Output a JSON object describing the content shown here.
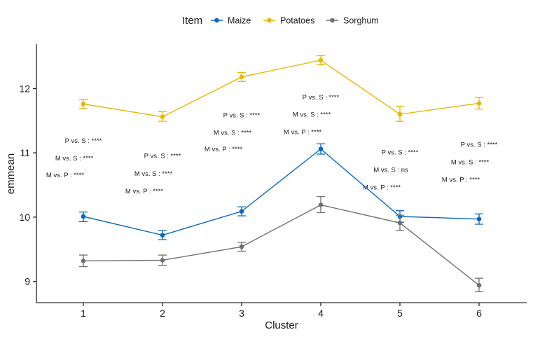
{
  "colors": {
    "Maize": "#0868C0",
    "Potatoes": "#E7B800",
    "Sorghum": "#707070",
    "axis": "#000000",
    "background": "#ffffff"
  },
  "chart_data": {
    "type": "line",
    "xlabel": "Cluster",
    "ylabel": "emmean",
    "categories": [
      "1",
      "2",
      "3",
      "4",
      "5",
      "6"
    ],
    "yticks": [
      9,
      10,
      11,
      12
    ],
    "ylim": [
      8.67,
      12.69
    ],
    "grid": false,
    "error_bars": true,
    "legend": {
      "title": "Item",
      "placement": "top",
      "entries": [
        "Maize",
        "Potatoes",
        "Sorghum"
      ]
    },
    "series": [
      {
        "name": "Maize",
        "values": [
          10.01,
          9.72,
          10.09,
          11.06,
          10.01,
          9.97
        ],
        "lower": [
          9.93,
          9.65,
          10.02,
          10.98,
          9.92,
          9.89
        ],
        "upper": [
          10.08,
          9.79,
          10.16,
          11.14,
          10.1,
          10.05
        ]
      },
      {
        "name": "Potatoes",
        "values": [
          11.76,
          11.56,
          12.18,
          12.44,
          11.6,
          11.77
        ],
        "lower": [
          11.69,
          11.49,
          12.11,
          12.37,
          11.49,
          11.68
        ],
        "upper": [
          11.83,
          11.64,
          12.25,
          12.51,
          11.72,
          11.86
        ]
      },
      {
        "name": "Sorghum",
        "values": [
          9.32,
          9.33,
          9.54,
          10.19,
          9.91,
          8.94
        ],
        "lower": [
          9.23,
          9.25,
          9.47,
          10.07,
          9.79,
          8.84
        ],
        "upper": [
          9.41,
          9.41,
          9.61,
          10.32,
          10.03,
          9.05
        ]
      }
    ],
    "annotations": [
      {
        "x": 1,
        "lines": [
          "P vs. S : ****",
          "M vs. S : ****",
          "M vs. P : ****"
        ],
        "y": [
          11.19,
          10.92,
          10.66
        ]
      },
      {
        "x": 2,
        "lines": [
          "P vs. S : ****",
          "M vs. S : ****",
          "M vs. P : ****"
        ],
        "y": [
          10.96,
          10.68,
          10.41
        ]
      },
      {
        "x": 3,
        "lines": [
          "P vs. S : ****",
          "M vs. S : ****",
          "M vs. P : ****"
        ],
        "y": [
          11.59,
          11.32,
          11.06
        ]
      },
      {
        "x": 4,
        "lines": [
          "P vs. S : ****",
          "M vs. S : ****",
          "M vs. P : ****"
        ],
        "y": [
          11.87,
          11.6,
          11.33
        ]
      },
      {
        "x": 5,
        "lines": [
          "P vs. S : ****",
          "M vs. S : ns",
          "M vs. P : ****"
        ],
        "y": [
          11.01,
          10.74,
          10.47
        ]
      },
      {
        "x": 6,
        "lines": [
          "P vs. S : ****",
          "M vs. S : ****",
          "M vs. P : ****"
        ],
        "y": [
          11.13,
          10.86,
          10.59
        ]
      }
    ]
  }
}
